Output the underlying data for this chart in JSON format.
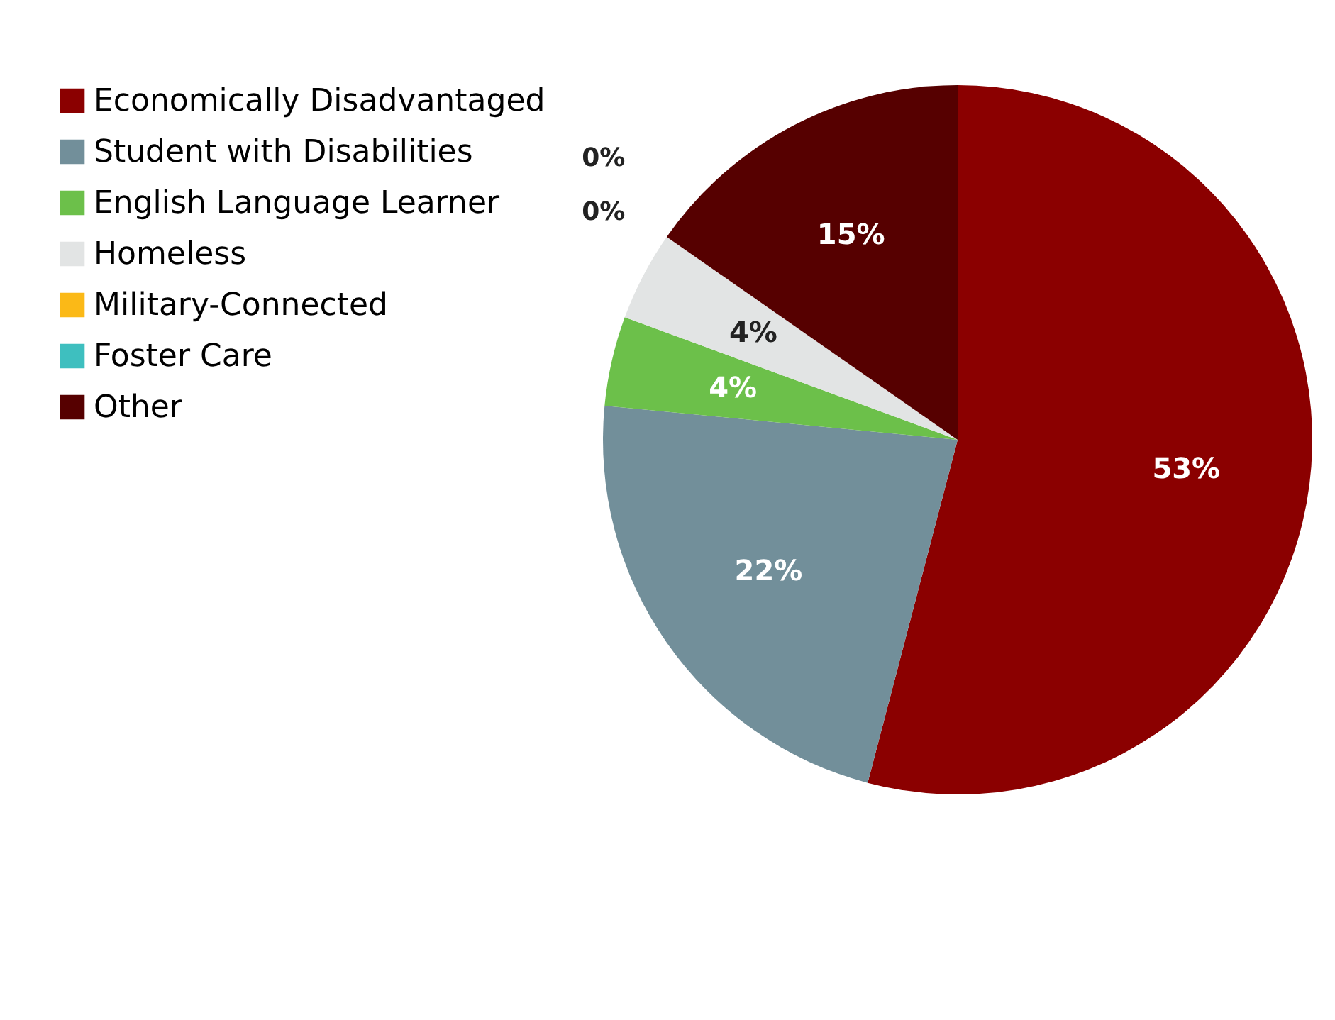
{
  "chart_data": {
    "type": "pie",
    "categories": [
      "Economically Disadvantaged",
      "Student with Disabilities",
      "English Language Learner",
      "Homeless",
      "Military-Connected",
      "Foster Care",
      "Other"
    ],
    "values": [
      53,
      22,
      4,
      4,
      0,
      0,
      15
    ],
    "value_labels": [
      "53%",
      "22%",
      "4%",
      "4%",
      "0%",
      "0%",
      "15%"
    ],
    "colors": [
      "#8b0000",
      "#728f9a",
      "#6cc04a",
      "#e2e4e4",
      "#fbb917",
      "#3ebfbf",
      "#560000"
    ],
    "legend": "left"
  }
}
